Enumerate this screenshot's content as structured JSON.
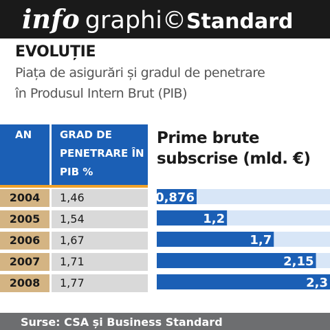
{
  "banner": {
    "info": "info",
    "graphic": "graphi©",
    "standard": "Standard"
  },
  "kicker": "EVOLUȚIE",
  "subtitle_line1": "Piața de asigurări și gradul de penetrare",
  "subtitle_line2": "în Produsul Intern Brut (PIB)",
  "table": {
    "header_year": "AN",
    "header_penetration": "GRAD DE PENETRARE ÎN PIB %",
    "rows": [
      {
        "year": "2004",
        "penetration": "1,46"
      },
      {
        "year": "2005",
        "penetration": "1,54"
      },
      {
        "year": "2006",
        "penetration": "1,67"
      },
      {
        "year": "2007",
        "penetration": "1,71"
      },
      {
        "year": "2008",
        "penetration": "1,77"
      }
    ]
  },
  "footer": "Surse: CSA și Business Standard",
  "colors": {
    "blue": "#1b5fb5",
    "bar_light": "#d8e6f7",
    "orange": "#f0a22a",
    "gold": "#d4b483"
  },
  "chart_data": {
    "type": "bar",
    "orientation": "horizontal",
    "title_line1": "Prime brute",
    "title_line2": "subscrise (mld. €)",
    "categories": [
      "2004",
      "2005",
      "2006",
      "2007",
      "2008"
    ],
    "values": [
      0.876,
      1.2,
      1.7,
      2.15,
      2.3
    ],
    "labels": [
      "0,876",
      "1,2",
      "1,7",
      "2,15",
      "2,3"
    ],
    "xlim": [
      0,
      2.3
    ]
  }
}
